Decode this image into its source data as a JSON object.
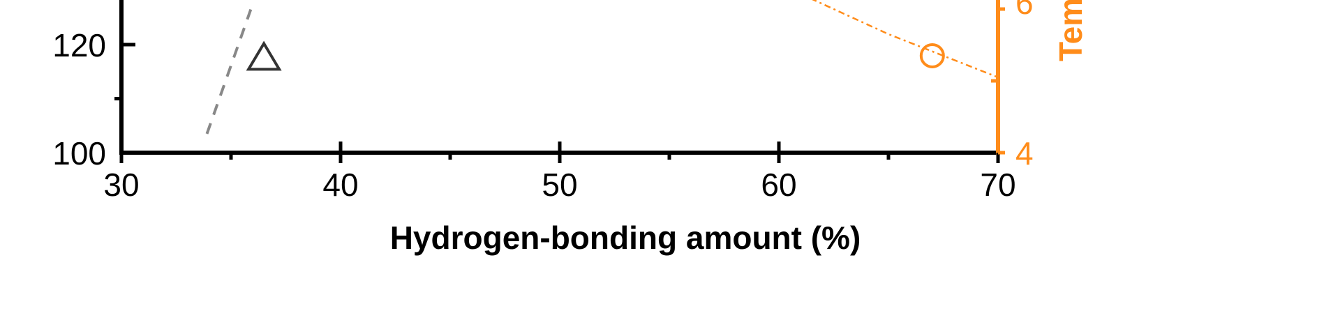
{
  "chart_data": {
    "type": "scatter",
    "xlabel": "Hydrogen-bonding amount  (%)",
    "x_ticks": [
      "30",
      "40",
      "50",
      "60",
      "70"
    ],
    "xlim": [
      30,
      70
    ],
    "ylim_left": [
      100,
      130
    ],
    "left_y_ticks": [
      "100",
      "120"
    ],
    "ylim_right": [
      4,
      7
    ],
    "right_y_ticks": [
      "4",
      "6"
    ],
    "right_ylabel_partial": "Tem",
    "right_axis_color": "#ff8c1a",
    "left_axis_color": "#000000",
    "series": [
      {
        "axis": "left",
        "marker": "triangle-open",
        "color": "#333333",
        "points": [
          {
            "x": 36.5,
            "y": 117.5
          }
        ]
      },
      {
        "axis": "left",
        "marker": "dashed-line",
        "color": "#888888",
        "points": [
          {
            "x": 33.9,
            "y": 103.5
          },
          {
            "x": 35.9,
            "y": 126.5
          }
        ]
      },
      {
        "axis": "right",
        "marker": "circle-open",
        "color": "#ff8c1a",
        "points": [
          {
            "x": 67.0,
            "y": 5.35
          }
        ]
      },
      {
        "axis": "right",
        "marker": "dash-dot-line",
        "color": "#ff8c1a",
        "points": [
          {
            "x": 55.0,
            "y": 6.98
          },
          {
            "x": 60.0,
            "y": 6.35
          },
          {
            "x": 65.0,
            "y": 5.65
          },
          {
            "x": 70.0,
            "y": 5.05
          }
        ]
      }
    ]
  }
}
